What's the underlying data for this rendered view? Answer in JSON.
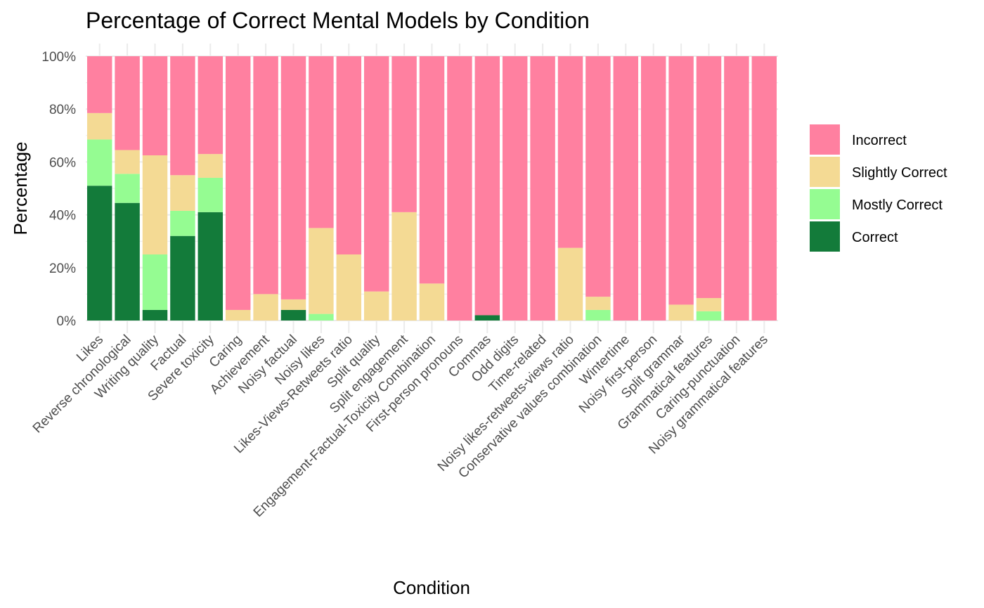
{
  "chart_data": {
    "type": "bar",
    "stacked": true,
    "title": "Percentage of Correct Mental Models by Condition",
    "xlabel": "Condition",
    "ylabel": "Percentage",
    "ylim": [
      0,
      100
    ],
    "yticks": [
      "0%",
      "20%",
      "40%",
      "60%",
      "80%",
      "100%"
    ],
    "grid": true,
    "legend_position": "right",
    "categories": [
      "Likes",
      "Reverse chronological",
      "Writing quality",
      "Factual",
      "Severe toxicity",
      "Caring",
      "Achievement",
      "Noisy factual",
      "Noisy likes",
      "Likes-Views-Retweets ratio",
      "Split quality",
      "Split engagement",
      "Engagement-Factual-Toxicity Combination",
      "First-person pronouns",
      "Commas",
      "Odd digits",
      "Time-related",
      "Noisy likes-retweets-views ratio",
      "Conservative values combination",
      "Wintertime",
      "Noisy first-person",
      "Split grammar",
      "Grammatical features",
      "Caring-punctuation",
      "Noisy grammatical features"
    ],
    "series": [
      {
        "name": "Correct",
        "color": "#137B3A",
        "values": [
          51,
          44.5,
          4,
          32,
          41,
          0,
          0,
          4,
          0,
          0,
          0,
          0,
          0,
          0,
          2,
          0,
          0,
          0,
          0,
          0,
          0,
          0,
          0,
          0,
          0
        ]
      },
      {
        "name": "Mostly Correct",
        "color": "#95FC92",
        "values": [
          17.5,
          11,
          21,
          9.5,
          13,
          0,
          0,
          0,
          2.5,
          0,
          0,
          0,
          0,
          0,
          0,
          0,
          0,
          0,
          4,
          0,
          0,
          0,
          3.5,
          0,
          0
        ]
      },
      {
        "name": "Slightly Correct",
        "color": "#F4DA94",
        "values": [
          10,
          9,
          37.5,
          13.5,
          9,
          4,
          10,
          4,
          32.5,
          25,
          11,
          41,
          14,
          0,
          0,
          0,
          0,
          27.5,
          5,
          0,
          0,
          6,
          5,
          0,
          0
        ]
      },
      {
        "name": "Incorrect",
        "color": "#FF80A0",
        "values": [
          21.5,
          35.5,
          37.5,
          45,
          37,
          96,
          90,
          92,
          65,
          75,
          89,
          59,
          86,
          100,
          98,
          100,
          100,
          72.5,
          91,
          100,
          100,
          94,
          91.5,
          100,
          100
        ]
      }
    ],
    "legend_order": [
      "Incorrect",
      "Slightly Correct",
      "Mostly Correct",
      "Correct"
    ],
    "grid_color": "#ebebeb"
  }
}
